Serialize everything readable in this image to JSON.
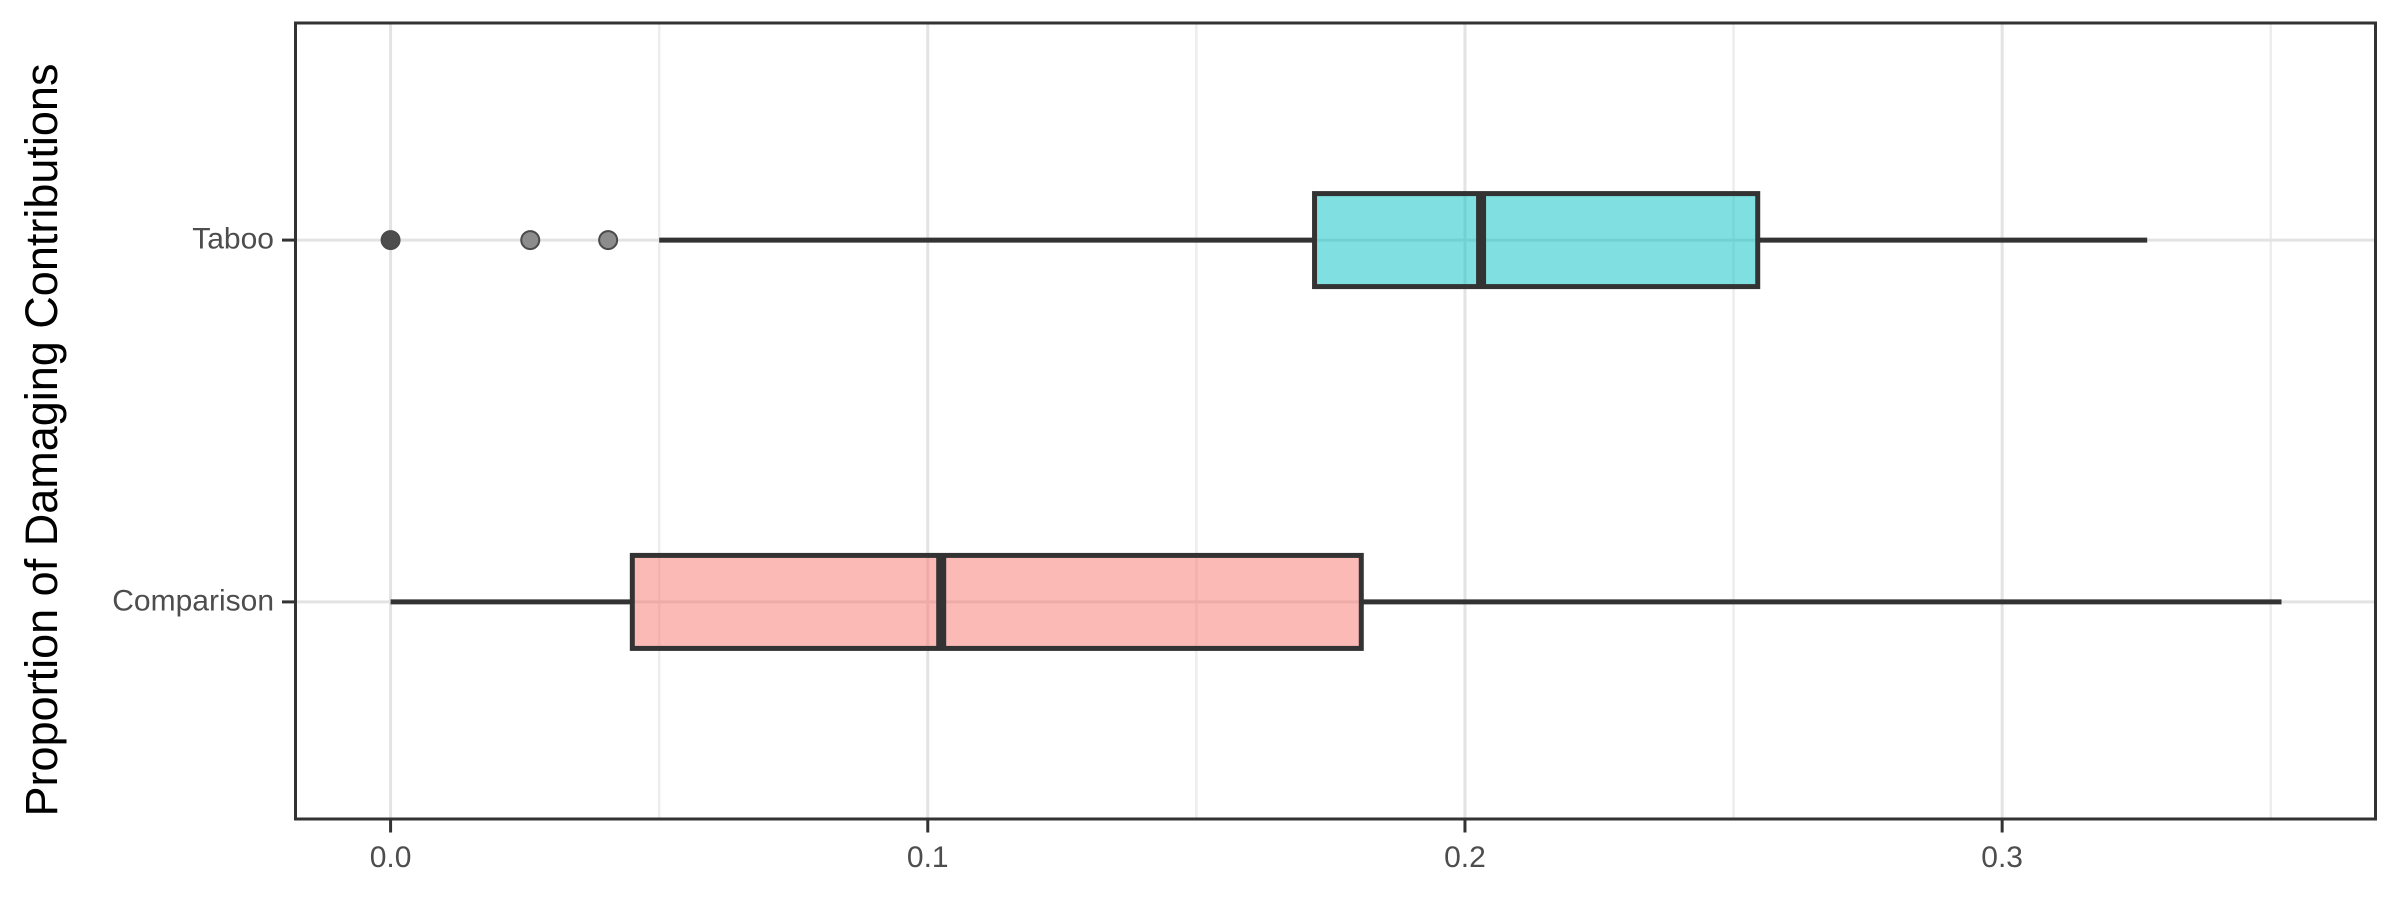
{
  "chart_data": {
    "type": "boxplot",
    "orientation": "horizontal",
    "title": "",
    "xlabel": "",
    "ylabel": "Proportion of Damaging Contributions",
    "x_ticks": [
      0.0,
      0.1,
      0.2,
      0.3
    ],
    "x_tick_labels": [
      "0.0",
      "0.1",
      "0.2",
      "0.3"
    ],
    "x_minor_ticks": [
      0.05,
      0.15,
      0.25,
      0.35
    ],
    "xlim": [
      -0.0177,
      0.3695
    ],
    "grid": "major-and-minor-vertical, major-horizontal",
    "legend": "none",
    "categories": [
      "Taboo",
      "Comparison"
    ],
    "series": [
      {
        "name": "Taboo",
        "position": 2,
        "whisker_low": 0.05,
        "q1": 0.172,
        "median": 0.203,
        "q3": 0.2545,
        "whisker_high": 0.327,
        "outliers": [
          0.0,
          0.026,
          0.0405
        ],
        "outlier_fills": [
          "#4D4D4D",
          "#8C8C8C",
          "#8C8C8C"
        ],
        "fill": "rgba(0,191,196,0.5)"
      },
      {
        "name": "Comparison",
        "position": 1,
        "whisker_low": 0.0,
        "q1": 0.045,
        "median": 0.1025,
        "q3": 0.1807,
        "whisker_high": 0.352,
        "outliers": [],
        "outlier_fills": [],
        "fill": "rgba(248,118,109,0.5)"
      }
    ],
    "colors": {
      "box_stroke": "#333333",
      "median_stroke": "#333333",
      "whisker_stroke": "#333333",
      "panel_border": "#333333",
      "grid_major": "#E3E3E3",
      "grid_minor": "#EDEDED",
      "tick_mark": "#333333",
      "tick_text": "#4D4D4D",
      "axis_title_text": "#000000",
      "background": "#FFFFFF"
    }
  }
}
